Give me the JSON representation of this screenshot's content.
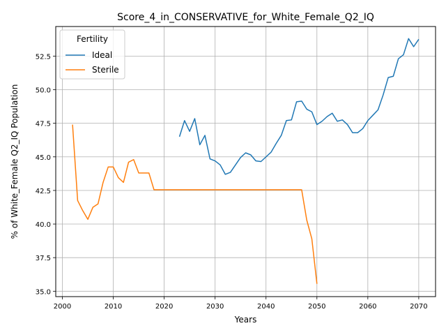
{
  "chart_data": {
    "type": "line",
    "title": "Score_4_in_CONSERVATIVE_for_White_Female_Q2_IQ",
    "xlabel": "Years",
    "ylabel": "% of White_Female Q2_IQ Population",
    "xlim": [
      1998.7,
      2073.3
    ],
    "ylim": [
      34.6,
      54.7
    ],
    "x_ticks": [
      2000,
      2010,
      2020,
      2030,
      2040,
      2050,
      2060,
      2070
    ],
    "y_ticks": [
      35.0,
      37.5,
      40.0,
      42.5,
      45.0,
      47.5,
      50.0,
      52.5
    ],
    "y_tick_labels": [
      "35.0",
      "37.5",
      "40.0",
      "42.5",
      "45.0",
      "47.5",
      "50.0",
      "52.5"
    ],
    "grid": true,
    "legend": {
      "title": "Fertility",
      "placement": "top-left"
    },
    "series": [
      {
        "name": "Ideal",
        "color": "#1f77b4",
        "x": [
          2023,
          2024,
          2025,
          2026,
          2027,
          2028,
          2029,
          2030,
          2031,
          2032,
          2033,
          2034,
          2035,
          2036,
          2037,
          2038,
          2039,
          2040,
          2041,
          2042,
          2043,
          2044,
          2045,
          2046,
          2047,
          2048,
          2049,
          2050,
          2051,
          2052,
          2053,
          2054,
          2055,
          2056,
          2057,
          2058,
          2059,
          2060,
          2061,
          2062,
          2063,
          2064,
          2065,
          2066,
          2067,
          2068,
          2069,
          2070
        ],
        "y": [
          46.5,
          47.7,
          46.9,
          47.85,
          45.9,
          46.6,
          44.85,
          44.7,
          44.4,
          43.7,
          43.85,
          44.4,
          44.95,
          45.3,
          45.15,
          44.7,
          44.65,
          45.0,
          45.35,
          46.0,
          46.6,
          47.7,
          47.75,
          49.1,
          49.15,
          48.55,
          48.35,
          47.4,
          47.65,
          48.0,
          48.25,
          47.65,
          47.75,
          47.4,
          46.8,
          46.8,
          47.1,
          47.7,
          48.1,
          48.5,
          49.6,
          50.9,
          51.0,
          52.3,
          52.6,
          53.8,
          53.2,
          53.75
        ]
      },
      {
        "name": "Sterile",
        "color": "#ff7f0e",
        "x": [
          2002,
          2003,
          2004,
          2005,
          2006,
          2007,
          2008,
          2009,
          2010,
          2011,
          2012,
          2013,
          2014,
          2015,
          2016,
          2017,
          2018,
          2019,
          2020,
          2030,
          2040,
          2047,
          2048,
          2049,
          2050
        ],
        "y": [
          47.4,
          41.75,
          41.0,
          40.35,
          41.25,
          41.5,
          43.1,
          44.25,
          44.25,
          43.45,
          43.1,
          44.6,
          44.8,
          43.8,
          43.8,
          43.8,
          42.55,
          42.55,
          42.55,
          42.55,
          42.55,
          42.55,
          40.3,
          38.9,
          35.55
        ]
      }
    ]
  }
}
